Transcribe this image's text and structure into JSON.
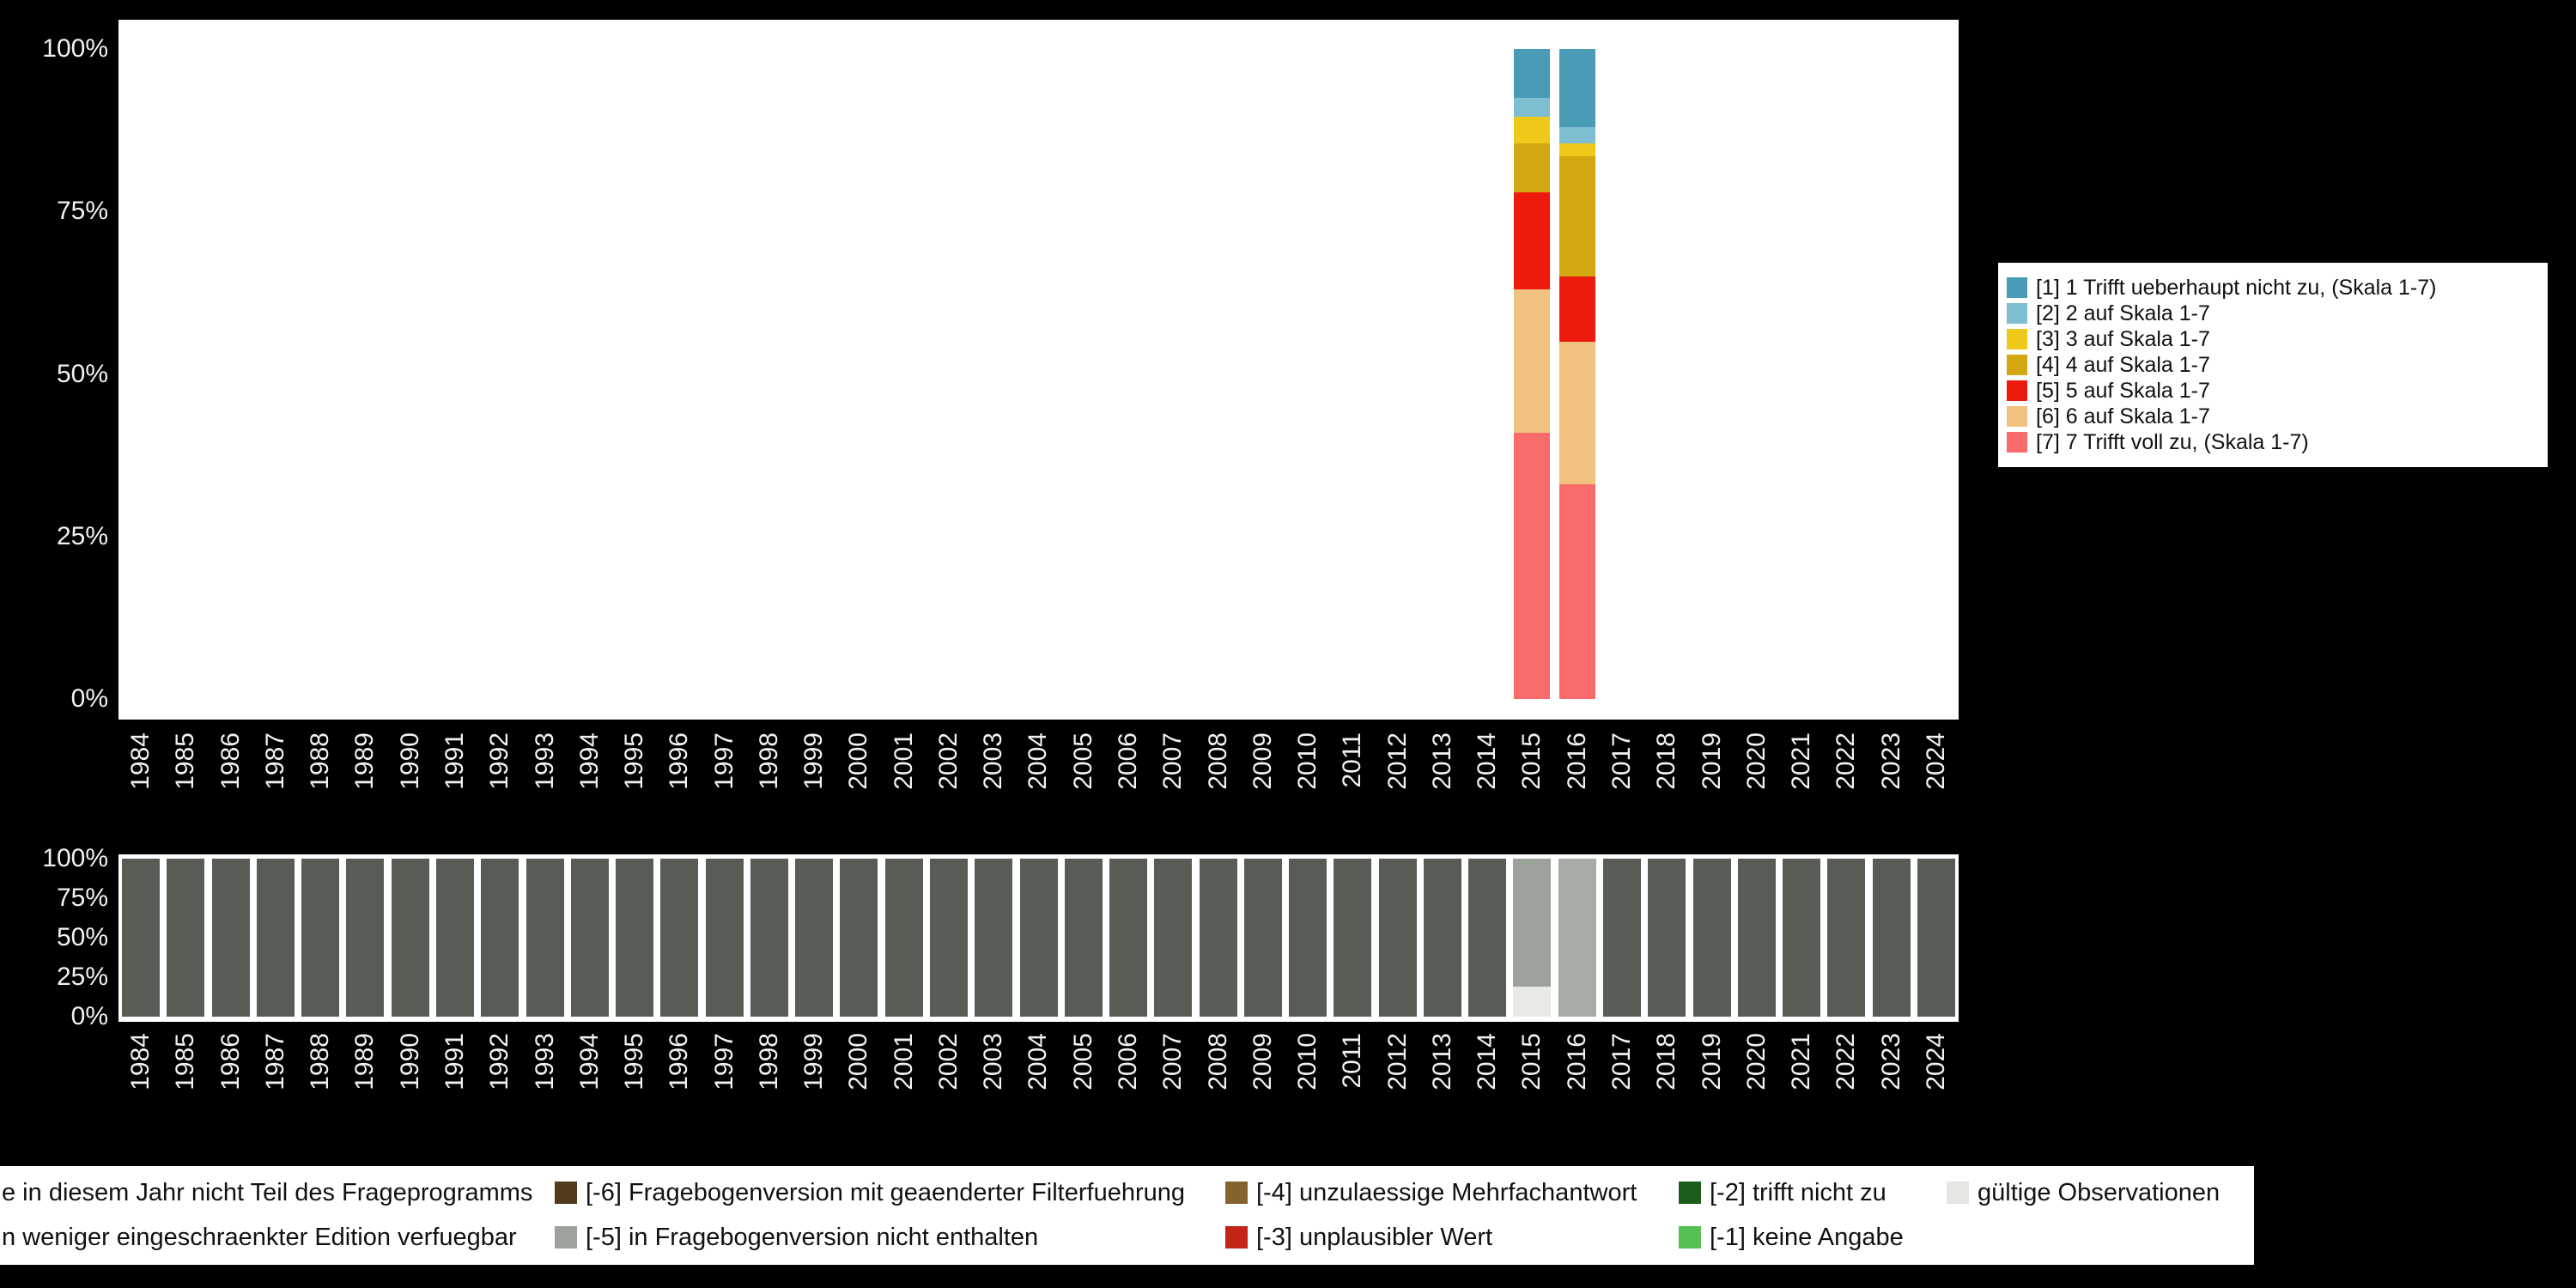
{
  "colors": {
    "background": "#000000",
    "plot_background": "#FFFFFF",
    "axis_text": "#F2F2F2",
    "legend_background": "#FFFFFF",
    "legend_text": "#111111"
  },
  "chart_data": [
    {
      "type": "bar",
      "stacked": true,
      "percent": true,
      "title": "",
      "xlabel": "",
      "ylabel": "",
      "ylim": [
        0,
        100
      ],
      "grid": false,
      "legend_position": "right",
      "y_ticks": [
        "100%",
        "75%",
        "50%",
        "25%",
        "0%"
      ],
      "categories": [
        "1984",
        "1985",
        "1986",
        "1987",
        "1988",
        "1989",
        "1990",
        "1991",
        "1992",
        "1993",
        "1994",
        "1995",
        "1996",
        "1997",
        "1998",
        "1999",
        "2000",
        "2001",
        "2002",
        "2003",
        "2004",
        "2005",
        "2006",
        "2007",
        "2008",
        "2009",
        "2010",
        "2011",
        "2012",
        "2013",
        "2014",
        "2015",
        "2016",
        "2017",
        "2018",
        "2019",
        "2020",
        "2021",
        "2022",
        "2023",
        "2024"
      ],
      "series": [
        {
          "name": "[1] 1 Trifft ueberhaupt nicht zu, (Skala 1-7)",
          "color": "#4A9BB5",
          "values": {
            "2015": 7.5,
            "2016": 12
          }
        },
        {
          "name": "[2] 2 auf Skala 1-7",
          "color": "#7FBDD1",
          "values": {
            "2015": 3,
            "2016": 2.5
          }
        },
        {
          "name": "[3] 3 auf Skala 1-7",
          "color": "#EFC919",
          "values": {
            "2015": 4,
            "2016": 2
          }
        },
        {
          "name": "[4] 4 auf Skala 1-7",
          "color": "#D3A712",
          "values": {
            "2015": 7.5,
            "2016": 18.5
          }
        },
        {
          "name": "[5] 5 auf Skala 1-7",
          "color": "#ED1B0C",
          "values": {
            "2015": 15,
            "2016": 10
          }
        },
        {
          "name": "[6] 6 auf Skala 1-7",
          "color": "#F1C180",
          "values": {
            "2015": 22,
            "2016": 22
          }
        },
        {
          "name": "[7] 7 Trifft voll zu, (Skala 1-7)",
          "color": "#F96B6B",
          "values": {
            "2015": 41,
            "2016": 33
          }
        }
      ]
    },
    {
      "type": "bar",
      "stacked": true,
      "percent": true,
      "title": "",
      "ylim": [
        0,
        100
      ],
      "y_ticks": [
        "100%",
        "75%",
        "50%",
        "25%",
        "0%"
      ],
      "categories": [
        "1984",
        "1985",
        "1986",
        "1987",
        "1988",
        "1989",
        "1990",
        "1991",
        "1992",
        "1993",
        "1994",
        "1995",
        "1996",
        "1997",
        "1998",
        "1999",
        "2000",
        "2001",
        "2002",
        "2003",
        "2004",
        "2005",
        "2006",
        "2007",
        "2008",
        "2009",
        "2010",
        "2011",
        "2012",
        "2013",
        "2014",
        "2015",
        "2016",
        "2017",
        "2018",
        "2019",
        "2020",
        "2021",
        "2022",
        "2023",
        "2024"
      ],
      "segment_colors": {
        "-8": "#575D55",
        "-7": "#A6ACA5",
        "-5": "#9BA29A",
        "valid": "#E8EAE6"
      },
      "default_stack": [
        {
          "key": "-8",
          "value": 100
        }
      ],
      "overrides": {
        "2015": [
          {
            "key": "-5",
            "value": 81
          },
          {
            "key": "valid",
            "value": 19
          }
        ],
        "2016": [
          {
            "key": "-7",
            "value": 100
          }
        ]
      }
    }
  ],
  "bottom_legend": {
    "rows": [
      [
        {
          "label": "e in diesem Jahr nicht Teil des Frageprogramms",
          "color": null,
          "clipped": true
        },
        {
          "label": "[-6] Fragebogenversion mit geaenderter Filterfuehrung",
          "color": "#533A1D"
        },
        {
          "label": "[-4] unzulaessige Mehrfachantwort",
          "color": "#85632F"
        },
        {
          "label": "[-2] trifft nicht zu",
          "color": "#1B5E1B"
        },
        {
          "label": "gültige Observationen",
          "color": "#E4E6E2"
        }
      ],
      [
        {
          "label": "n weniger eingeschraenkter Edition verfuegbar",
          "color": null,
          "clipped": true
        },
        {
          "label": "[-5] in Fragebogenversion nicht enthalten",
          "color": "#9BA29A"
        },
        {
          "label": "[-3] unplausibler Wert",
          "color": "#C42318"
        },
        {
          "label": "[-1] keine Angabe",
          "color": "#54C054"
        }
      ]
    ]
  }
}
